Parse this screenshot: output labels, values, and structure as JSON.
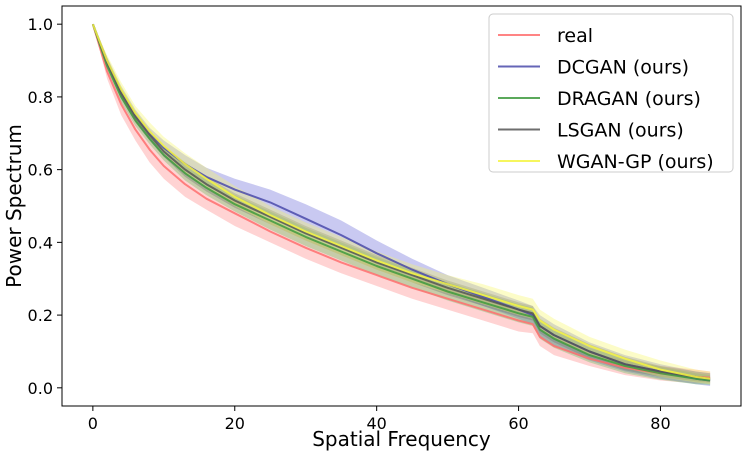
{
  "chart_data": {
    "type": "line",
    "title": "",
    "xlabel": "Spatial Frequency",
    "ylabel": "Power Spectrum",
    "xlim": [
      -4.35,
      91.35
    ],
    "ylim": [
      -0.05,
      1.05
    ],
    "xticks": [
      0,
      20,
      40,
      60,
      80
    ],
    "yticks": [
      0.0,
      0.2,
      0.4,
      0.6,
      0.8,
      1.0
    ],
    "legend_position": "top-right",
    "series": [
      {
        "name": "real",
        "color": "#ff6f6f",
        "band_color": "#ff8080",
        "x": [
          0,
          2,
          4,
          6,
          8,
          10,
          13,
          16,
          20,
          25,
          30,
          35,
          40,
          45,
          50,
          55,
          60,
          62,
          63,
          65,
          70,
          75,
          80,
          85,
          87
        ],
        "y": [
          1.0,
          0.87,
          0.78,
          0.71,
          0.655,
          0.61,
          0.56,
          0.52,
          0.48,
          0.43,
          0.385,
          0.345,
          0.31,
          0.275,
          0.245,
          0.215,
          0.185,
          0.175,
          0.14,
          0.115,
          0.08,
          0.055,
          0.04,
          0.03,
          0.028
        ],
        "low": [
          1.0,
          0.85,
          0.75,
          0.68,
          0.62,
          0.575,
          0.525,
          0.49,
          0.445,
          0.4,
          0.355,
          0.315,
          0.28,
          0.245,
          0.215,
          0.185,
          0.155,
          0.15,
          0.115,
          0.09,
          0.06,
          0.035,
          0.02,
          0.012,
          0.012
        ],
        "high": [
          1.0,
          0.89,
          0.81,
          0.74,
          0.69,
          0.645,
          0.595,
          0.55,
          0.515,
          0.46,
          0.415,
          0.375,
          0.34,
          0.305,
          0.275,
          0.245,
          0.215,
          0.205,
          0.165,
          0.14,
          0.1,
          0.075,
          0.06,
          0.05,
          0.045
        ]
      },
      {
        "name": "DCGAN (ours)",
        "color": "#4a4aaa",
        "band_color": "#6464d8",
        "x": [
          0,
          2,
          4,
          6,
          8,
          10,
          13,
          16,
          20,
          25,
          30,
          35,
          40,
          45,
          50,
          55,
          60,
          62,
          63,
          65,
          70,
          75,
          80,
          85,
          87
        ],
        "y": [
          1.0,
          0.9,
          0.815,
          0.75,
          0.7,
          0.66,
          0.615,
          0.58,
          0.545,
          0.51,
          0.465,
          0.42,
          0.37,
          0.325,
          0.285,
          0.25,
          0.215,
          0.2,
          0.17,
          0.145,
          0.1,
          0.065,
          0.045,
          0.025,
          0.02
        ],
        "low": [
          1.0,
          0.89,
          0.8,
          0.735,
          0.685,
          0.645,
          0.595,
          0.555,
          0.515,
          0.475,
          0.43,
          0.385,
          0.34,
          0.3,
          0.26,
          0.225,
          0.19,
          0.175,
          0.14,
          0.115,
          0.075,
          0.045,
          0.025,
          0.01,
          0.005
        ],
        "high": [
          1.0,
          0.91,
          0.83,
          0.765,
          0.715,
          0.68,
          0.64,
          0.605,
          0.575,
          0.545,
          0.505,
          0.46,
          0.405,
          0.355,
          0.31,
          0.275,
          0.24,
          0.225,
          0.2,
          0.175,
          0.125,
          0.09,
          0.065,
          0.045,
          0.04
        ]
      },
      {
        "name": "DRAGAN (ours)",
        "color": "#3e9a3e",
        "band_color": "#5cbf5c",
        "x": [
          0,
          2,
          4,
          6,
          8,
          10,
          13,
          16,
          20,
          25,
          30,
          35,
          40,
          45,
          50,
          55,
          60,
          62,
          63,
          65,
          70,
          75,
          80,
          85,
          87
        ],
        "y": [
          1.0,
          0.885,
          0.8,
          0.735,
          0.685,
          0.64,
          0.59,
          0.55,
          0.505,
          0.46,
          0.415,
          0.375,
          0.335,
          0.3,
          0.265,
          0.235,
          0.205,
          0.195,
          0.16,
          0.135,
          0.09,
          0.06,
          0.04,
          0.025,
          0.02
        ],
        "low": [
          1.0,
          0.875,
          0.785,
          0.72,
          0.67,
          0.625,
          0.57,
          0.53,
          0.485,
          0.435,
          0.39,
          0.35,
          0.31,
          0.275,
          0.24,
          0.21,
          0.18,
          0.17,
          0.135,
          0.11,
          0.07,
          0.04,
          0.022,
          0.01,
          0.008
        ],
        "high": [
          1.0,
          0.9,
          0.815,
          0.75,
          0.7,
          0.66,
          0.61,
          0.575,
          0.53,
          0.485,
          0.44,
          0.4,
          0.36,
          0.325,
          0.29,
          0.26,
          0.23,
          0.22,
          0.185,
          0.16,
          0.11,
          0.08,
          0.058,
          0.04,
          0.035
        ]
      },
      {
        "name": "LSGAN (ours)",
        "color": "#555555",
        "band_color": "#6c6c6c",
        "x": [
          0,
          2,
          4,
          6,
          8,
          10,
          13,
          16,
          20,
          25,
          30,
          35,
          40,
          45,
          50,
          55,
          60,
          62,
          63,
          65,
          70,
          75,
          80,
          85,
          87
        ],
        "y": [
          1.0,
          0.895,
          0.81,
          0.745,
          0.695,
          0.65,
          0.6,
          0.56,
          0.515,
          0.47,
          0.425,
          0.385,
          0.345,
          0.31,
          0.275,
          0.245,
          0.215,
          0.205,
          0.17,
          0.145,
          0.1,
          0.065,
          0.045,
          0.03,
          0.025
        ],
        "low": [
          1.0,
          0.885,
          0.795,
          0.73,
          0.68,
          0.635,
          0.58,
          0.54,
          0.495,
          0.45,
          0.405,
          0.365,
          0.325,
          0.29,
          0.255,
          0.225,
          0.195,
          0.185,
          0.15,
          0.125,
          0.08,
          0.048,
          0.03,
          0.018,
          0.015
        ],
        "high": [
          1.0,
          0.905,
          0.825,
          0.76,
          0.71,
          0.665,
          0.62,
          0.58,
          0.535,
          0.49,
          0.445,
          0.405,
          0.365,
          0.33,
          0.295,
          0.265,
          0.235,
          0.225,
          0.19,
          0.165,
          0.12,
          0.085,
          0.06,
          0.045,
          0.04
        ]
      },
      {
        "name": "WGAN-GP (ours)",
        "color": "#f5f542",
        "band_color": "#f5f560",
        "x": [
          0,
          2,
          4,
          6,
          8,
          10,
          13,
          16,
          20,
          25,
          30,
          35,
          40,
          45,
          50,
          55,
          60,
          62,
          63,
          65,
          70,
          75,
          80,
          85,
          87
        ],
        "y": [
          1.0,
          0.9,
          0.82,
          0.755,
          0.705,
          0.665,
          0.615,
          0.575,
          0.525,
          0.475,
          0.43,
          0.39,
          0.35,
          0.315,
          0.285,
          0.255,
          0.225,
          0.215,
          0.185,
          0.16,
          0.115,
          0.08,
          0.05,
          0.03,
          0.025
        ],
        "low": [
          1.0,
          0.89,
          0.805,
          0.74,
          0.69,
          0.645,
          0.59,
          0.55,
          0.5,
          0.45,
          0.405,
          0.365,
          0.325,
          0.29,
          0.26,
          0.23,
          0.2,
          0.19,
          0.16,
          0.135,
          0.09,
          0.055,
          0.03,
          0.015,
          0.01
        ],
        "high": [
          1.0,
          0.915,
          0.84,
          0.775,
          0.73,
          0.69,
          0.645,
          0.605,
          0.555,
          0.5,
          0.455,
          0.415,
          0.375,
          0.34,
          0.31,
          0.285,
          0.255,
          0.245,
          0.215,
          0.19,
          0.14,
          0.105,
          0.075,
          0.05,
          0.045
        ]
      }
    ]
  }
}
